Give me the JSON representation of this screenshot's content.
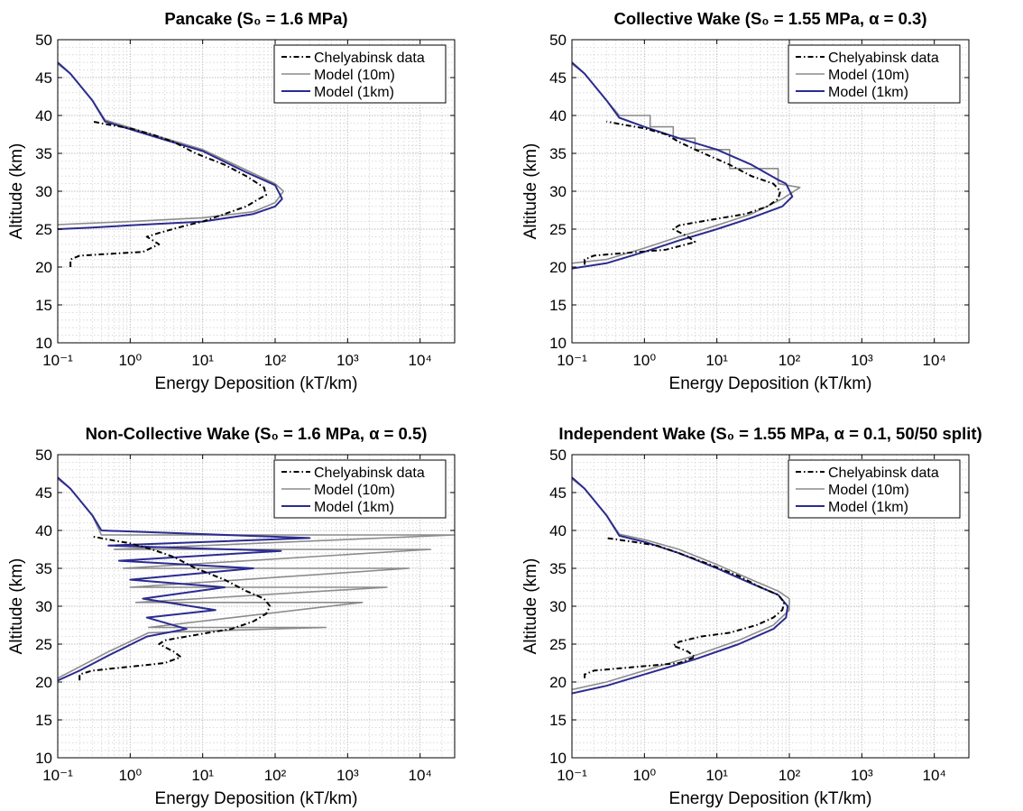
{
  "figure": {
    "colors": {
      "data": "#000000",
      "model10m": "#8c8c8c",
      "model1km": "#2b2b8f",
      "grid": "#d2d2d2",
      "axes": "#000000"
    }
  },
  "chart_data": [
    {
      "type": "line",
      "title": "Pancake (S₀ = 1.6 MPa)",
      "xlabel": "Energy Deposition (kT/km)",
      "ylabel": "Altitude (km)",
      "xscale": "log",
      "xlim": [
        0.1,
        30000
      ],
      "ylim": [
        10,
        50
      ],
      "xticks": [
        0.1,
        1,
        10,
        100,
        1000,
        10000
      ],
      "yticks": [
        10,
        15,
        20,
        25,
        30,
        35,
        40,
        45,
        50
      ],
      "xticklabels": [
        "10⁻¹",
        "10⁰",
        "10¹",
        "10²",
        "10³",
        "10⁴"
      ],
      "yticklabels": [
        "10",
        "15",
        "20",
        "25",
        "30",
        "35",
        "40",
        "45",
        "50"
      ],
      "grid": true,
      "legend": {
        "position": "top-right",
        "entries": [
          "Chelyabinsk data",
          "Model (10m)",
          "Model (1km)"
        ]
      },
      "series": [
        {
          "name": "Chelyabinsk data",
          "style": "dashdot",
          "x": [
            0.15,
            0.15,
            0.2,
            1.5,
            2.5,
            1.7,
            2.5,
            6,
            10,
            20,
            40,
            60,
            75,
            70,
            40,
            20,
            8,
            4,
            2,
            1,
            0.5,
            0.3
          ],
          "y": [
            20,
            21,
            21.5,
            22,
            23,
            24,
            24.5,
            25.5,
            26,
            27,
            28,
            29,
            29.5,
            30.5,
            32,
            33.5,
            35,
            36.5,
            37.5,
            38.3,
            38.8,
            39.2
          ]
        },
        {
          "name": "Model (10m)",
          "style": "solid",
          "x": [
            0.1,
            0.15,
            0.3,
            0.45,
            2,
            10,
            40,
            100,
            130,
            100,
            50,
            10,
            1,
            0.3,
            0.1
          ],
          "y": [
            46.8,
            45.5,
            42,
            39.4,
            37.5,
            35.5,
            32.8,
            31,
            30,
            28.5,
            27.3,
            26.5,
            26,
            25.8,
            25.6
          ]
        },
        {
          "name": "Model (1km)",
          "style": "solid",
          "x": [
            0.1,
            0.15,
            0.3,
            0.45,
            2,
            10,
            40,
            100,
            125,
            100,
            50,
            10,
            1,
            0.3,
            0.1
          ],
          "y": [
            47,
            45.5,
            42,
            39.2,
            37.3,
            35.3,
            32.5,
            30.8,
            29,
            28,
            27,
            26,
            25.5,
            25.2,
            25
          ]
        }
      ]
    },
    {
      "type": "line",
      "title": "Collective Wake (S₀ = 1.55 MPa, α = 0.3)",
      "xlabel": "Energy Deposition (kT/km)",
      "ylabel": "Altitude (km)",
      "xscale": "log",
      "xlim": [
        0.1,
        30000
      ],
      "ylim": [
        10,
        50
      ],
      "xticks": [
        0.1,
        1,
        10,
        100,
        1000,
        10000
      ],
      "yticks": [
        10,
        15,
        20,
        25,
        30,
        35,
        40,
        45,
        50
      ],
      "xticklabels": [
        "10⁻¹",
        "10⁰",
        "10¹",
        "10²",
        "10³",
        "10⁴"
      ],
      "yticklabels": [
        "10",
        "15",
        "20",
        "25",
        "30",
        "35",
        "40",
        "45",
        "50"
      ],
      "grid": true,
      "legend": {
        "position": "top-right",
        "entries": [
          "Chelyabinsk data",
          "Model (10m)",
          "Model (1km)"
        ]
      },
      "series": [
        {
          "name": "Chelyabinsk data",
          "style": "dashdot",
          "x": [
            0.15,
            0.15,
            0.2,
            2,
            5,
            4,
            2.5,
            3,
            6,
            12,
            25,
            50,
            70,
            75,
            60,
            30,
            15,
            5,
            3,
            2,
            1,
            0.5,
            0.3
          ],
          "y": [
            20.3,
            21,
            21.5,
            22.3,
            23.3,
            24,
            25,
            25.5,
            26,
            26.5,
            27,
            28,
            29,
            30,
            31,
            32,
            33.5,
            35.5,
            36.5,
            37.5,
            38.3,
            38.8,
            39.2
          ]
        },
        {
          "name": "Model (10m)",
          "style": "solid",
          "x": [
            0.1,
            0.15,
            0.3,
            0.45,
            1.2,
            1.2,
            2.5,
            2.5,
            5,
            5,
            15,
            15,
            70,
            70,
            140,
            80,
            30,
            10,
            3,
            1,
            0.3,
            0.1
          ],
          "y": [
            46.8,
            45.5,
            42,
            40,
            40,
            38.5,
            38.5,
            37,
            37,
            35.5,
            35.5,
            33,
            33,
            31,
            30.5,
            29,
            27,
            25.5,
            24,
            22.5,
            21,
            20.5
          ]
        },
        {
          "name": "Model (1km)",
          "style": "solid",
          "x": [
            0.1,
            0.15,
            0.3,
            0.45,
            1,
            3,
            10,
            30,
            70,
            90,
            110,
            80,
            30,
            10,
            3,
            1,
            0.3,
            0.1
          ],
          "y": [
            47,
            45.5,
            42,
            39.7,
            38.5,
            37,
            35.5,
            33.5,
            31.5,
            31,
            29.3,
            28,
            26.5,
            25,
            23.5,
            22,
            20.5,
            19.8
          ]
        }
      ]
    },
    {
      "type": "line",
      "title": "Non-Collective Wake (S₀ = 1.6 MPa, α = 0.5)",
      "xlabel": "Energy Deposition (kT/km)",
      "ylabel": "Altitude (km)",
      "xscale": "log",
      "xlim": [
        0.1,
        30000
      ],
      "ylim": [
        10,
        50
      ],
      "xticks": [
        0.1,
        1,
        10,
        100,
        1000,
        10000
      ],
      "yticks": [
        10,
        15,
        20,
        25,
        30,
        35,
        40,
        45,
        50
      ],
      "xticklabels": [
        "10⁻¹",
        "10⁰",
        "10¹",
        "10²",
        "10³",
        "10⁴"
      ],
      "yticklabels": [
        "10",
        "15",
        "20",
        "25",
        "30",
        "35",
        "40",
        "45",
        "50"
      ],
      "grid": true,
      "legend": {
        "position": "top-right",
        "entries": [
          "Chelyabinsk data",
          "Model (10m)",
          "Model (1km)"
        ]
      },
      "series": [
        {
          "name": "Chelyabinsk data",
          "style": "dashdot",
          "x": [
            0.2,
            0.2,
            0.3,
            3,
            5,
            4,
            2.5,
            3,
            6,
            12,
            25,
            50,
            75,
            85,
            70,
            40,
            20,
            8,
            4,
            2,
            1,
            0.5,
            0.3
          ],
          "y": [
            20.2,
            21,
            21.5,
            22.5,
            23.3,
            24,
            25,
            25.5,
            26,
            26.5,
            27,
            28,
            29,
            30,
            31,
            32,
            33.5,
            35,
            36.5,
            37.5,
            38.3,
            38.8,
            39.2
          ]
        },
        {
          "name": "Model (10m)",
          "style": "solid",
          "x": [
            0.1,
            0.15,
            0.3,
            0.4,
            30000,
            0.6,
            14000,
            0.8,
            7000,
            1,
            3500,
            1.2,
            1600,
            1.8,
            500,
            1.8,
            0.5,
            0.2,
            0.1
          ],
          "y": [
            46.8,
            45.5,
            42,
            39.4,
            39.4,
            37.5,
            37.5,
            35,
            35,
            32.5,
            32.5,
            30.5,
            30.5,
            27.2,
            27.2,
            26.5,
            24,
            22,
            20.5
          ]
        },
        {
          "name": "Model (1km)",
          "style": "solid",
          "x": [
            0.1,
            0.15,
            0.3,
            0.4,
            300,
            0.5,
            120,
            0.7,
            50,
            1,
            20,
            1.5,
            15,
            1.7,
            6,
            1.7,
            0.5,
            0.2,
            0.1
          ],
          "y": [
            47,
            45.5,
            42,
            40,
            39,
            38,
            37.3,
            36,
            35,
            33.5,
            32.5,
            31,
            29.5,
            28.5,
            27,
            26,
            23.5,
            21.5,
            20.2
          ]
        }
      ]
    },
    {
      "type": "line",
      "title": "Independent Wake (S₀ = 1.55 MPa, α = 0.1, 50/50 split)",
      "xlabel": "Energy Deposition (kT/km)",
      "ylabel": "Altitude (km)",
      "xscale": "log",
      "xlim": [
        0.1,
        30000
      ],
      "ylim": [
        10,
        50
      ],
      "xticks": [
        0.1,
        1,
        10,
        100,
        1000,
        10000
      ],
      "yticks": [
        10,
        15,
        20,
        25,
        30,
        35,
        40,
        45,
        50
      ],
      "xticklabels": [
        "10⁻¹",
        "10⁰",
        "10¹",
        "10²",
        "10³",
        "10⁴"
      ],
      "yticklabels": [
        "10",
        "15",
        "20",
        "25",
        "30",
        "35",
        "40",
        "45",
        "50"
      ],
      "grid": true,
      "legend": {
        "position": "top-right",
        "entries": [
          "Chelyabinsk data",
          "Model (10m)",
          "Model (1km)"
        ]
      },
      "series": [
        {
          "name": "Chelyabinsk data",
          "style": "dashdot",
          "x": [
            0.15,
            0.15,
            0.2,
            3,
            5,
            4,
            2.5,
            3,
            6,
            15,
            35,
            60,
            80,
            85,
            70,
            40,
            20,
            8,
            3,
            1.5,
            0.7,
            0.3
          ],
          "y": [
            20.5,
            21,
            21.5,
            22.5,
            23.3,
            24,
            24.8,
            25.3,
            26,
            26.5,
            27.5,
            28.5,
            29.5,
            30.5,
            31.5,
            32.5,
            34,
            35.5,
            37,
            38,
            38.5,
            39
          ]
        },
        {
          "name": "Model (10m)",
          "style": "solid",
          "x": [
            0.1,
            0.15,
            0.3,
            0.45,
            1,
            3,
            10,
            30,
            70,
            100,
            100,
            60,
            20,
            5,
            1,
            0.3,
            0.1
          ],
          "y": [
            46.8,
            45.5,
            42,
            39.5,
            38.8,
            37.5,
            35.5,
            33.5,
            32,
            31,
            29.5,
            27.5,
            25.5,
            23.5,
            21.5,
            20,
            19
          ]
        },
        {
          "name": "Model (1km)",
          "style": "solid",
          "x": [
            0.1,
            0.15,
            0.3,
            0.45,
            1,
            3,
            10,
            30,
            70,
            95,
            90,
            60,
            20,
            5,
            1,
            0.3,
            0.1
          ],
          "y": [
            47,
            45.5,
            42,
            39.3,
            38.5,
            37,
            35,
            33,
            31.5,
            30,
            28.5,
            27,
            25,
            23,
            21,
            19.5,
            18.5
          ]
        }
      ]
    }
  ]
}
